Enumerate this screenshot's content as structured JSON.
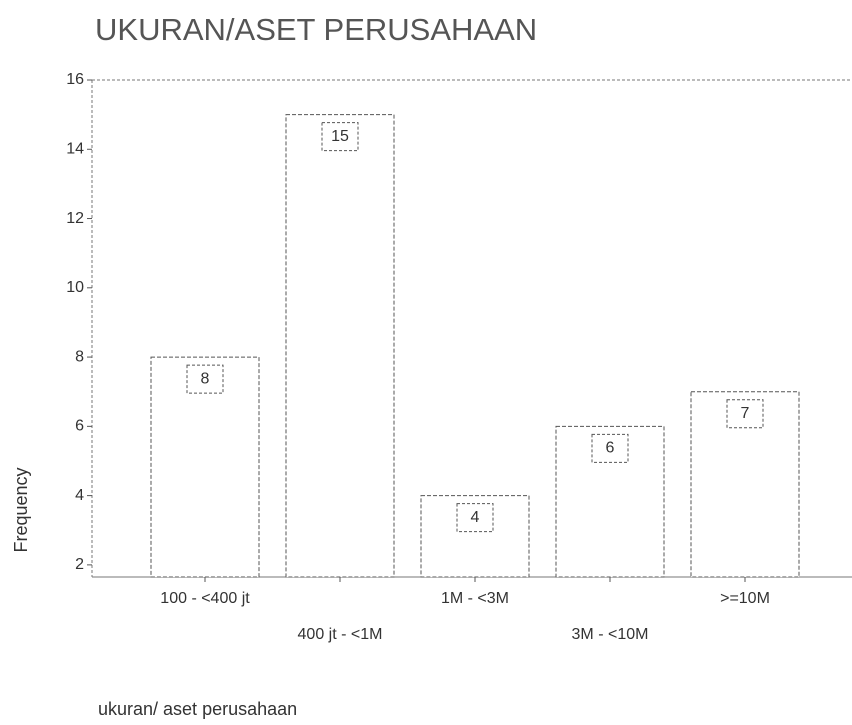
{
  "chart_data": {
    "type": "bar",
    "title": "UKURAN/ASET PERUSAHAAN",
    "categories": [
      "100 - <400 jt",
      "400 jt - <1M",
      "1M - <3M",
      "3M - <10M",
      ">=10M"
    ],
    "values": [
      8,
      15,
      4,
      6,
      7
    ],
    "color": "#ffffff",
    "y_label": "Frequency",
    "x_label": "ukuran/ aset perusahaan",
    "ylim": [
      1.65,
      16
    ],
    "yticks": [
      2,
      4,
      6,
      8,
      10,
      12,
      14,
      16
    ],
    "grid": false
  }
}
